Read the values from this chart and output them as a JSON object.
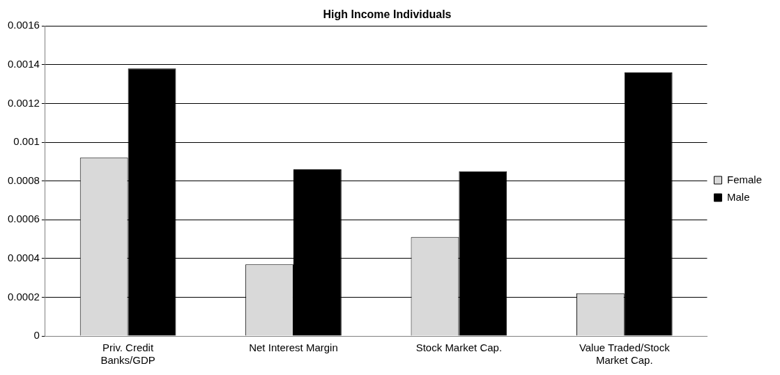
{
  "chart_data": {
    "type": "bar",
    "title": "High Income Individuals",
    "categories": [
      [
        "Priv. Credit",
        "Banks/GDP"
      ],
      "Net Interest Margin",
      "Stock Market Cap.",
      [
        "Value Traded/Stock",
        "Market Cap."
      ]
    ],
    "series": [
      {
        "name": "Female",
        "color": "#d9d9d9",
        "values": [
          0.00092,
          0.00037,
          0.00051,
          0.00022
        ]
      },
      {
        "name": "Male",
        "color": "#000000",
        "values": [
          0.00138,
          0.00086,
          0.00085,
          0.00136
        ]
      }
    ],
    "ylim": [
      0,
      0.0016
    ],
    "yticks": [
      0,
      0.0002,
      0.0004,
      0.0006,
      0.0008,
      0.001,
      0.0012,
      0.0014,
      0.0016
    ],
    "grid": "y",
    "legend": "right"
  }
}
